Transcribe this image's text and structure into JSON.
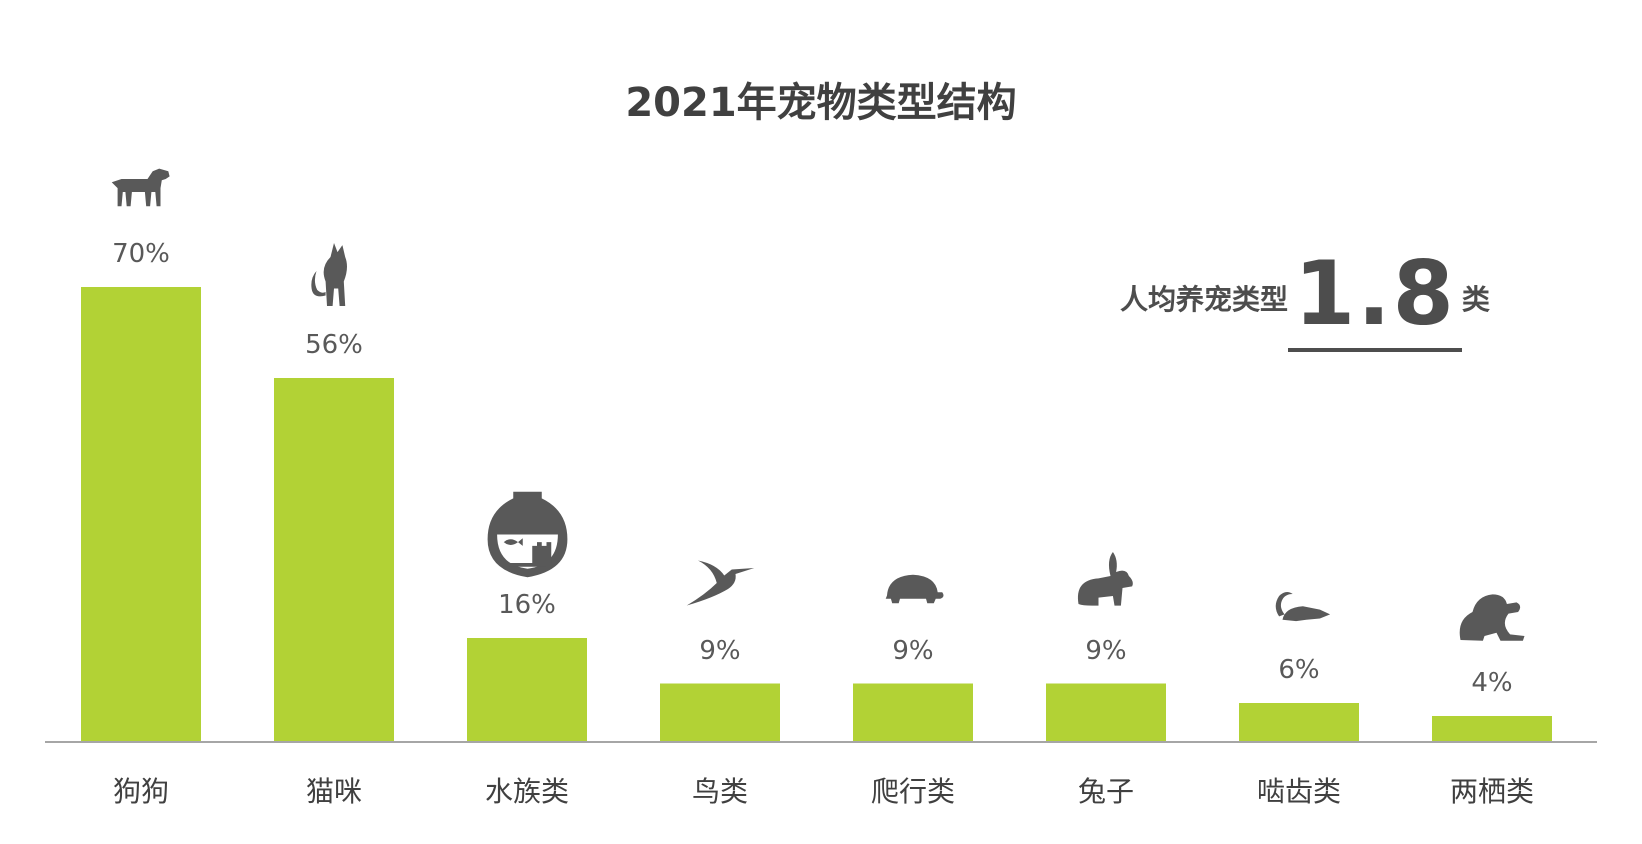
{
  "chart_data": {
    "type": "bar",
    "title": "2021年宠物类型结构",
    "categories": [
      "狗狗",
      "猫咪",
      "水族类",
      "鸟类",
      "爬行类",
      "兔子",
      "啮齿类",
      "两栖类"
    ],
    "values": [
      70,
      56,
      16,
      9,
      9,
      9,
      6,
      4
    ],
    "value_labels": [
      "70%",
      "56%",
      "16%",
      "9%",
      "9%",
      "9%",
      "6%",
      "4%"
    ],
    "icons": [
      "dog-icon",
      "cat-icon",
      "fishbowl-icon",
      "hummingbird-icon",
      "turtle-icon",
      "rabbit-icon",
      "rat-icon",
      "frog-icon"
    ],
    "ylim": [
      0,
      70
    ],
    "grid": false,
    "bar_color": "#b2d235",
    "icon_color": "#595959"
  },
  "summary": {
    "prefix": "人均养宠类型",
    "value": "1.8",
    "unit": "类"
  }
}
